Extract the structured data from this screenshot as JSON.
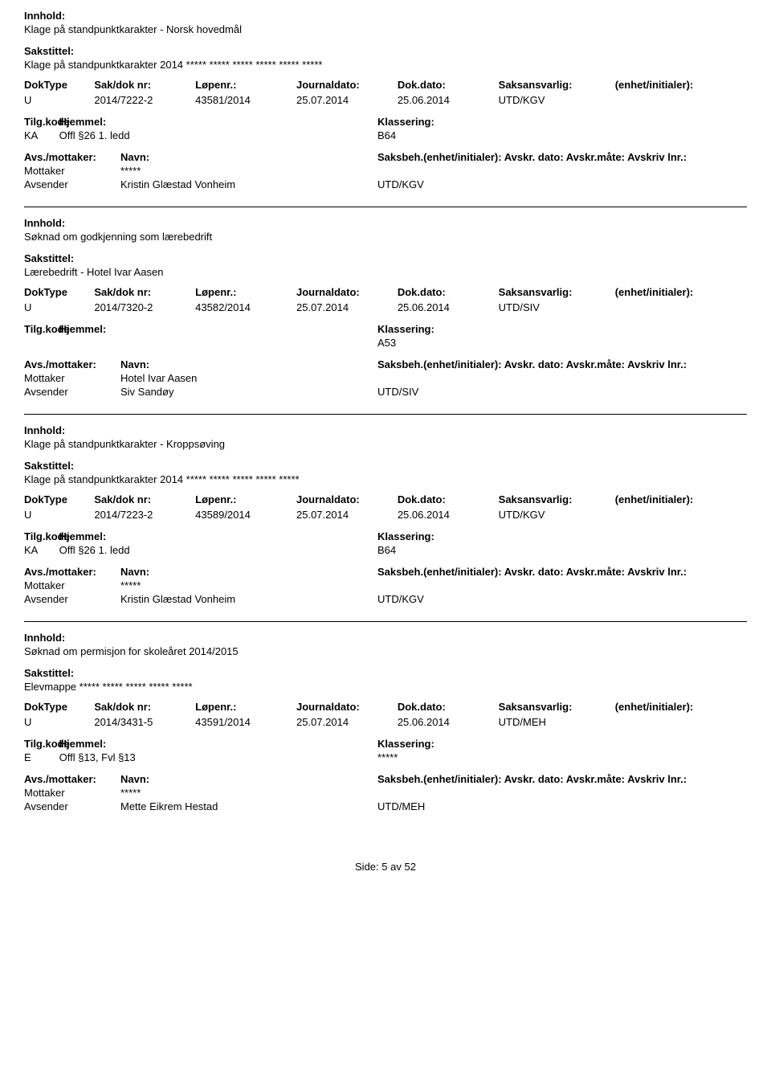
{
  "labels": {
    "innhold": "Innhold:",
    "sakstittel": "Sakstittel:",
    "doktype": "DokType",
    "sakdok": "Sak/dok nr:",
    "lopenr": "Løpenr.:",
    "journaldato": "Journaldato:",
    "dokdato": "Dok.dato:",
    "saksansvarlig": "Saksansvarlig:",
    "enhet": "(enhet/initialer):",
    "tilgkode": "Tilg.kode",
    "hjemmel": "Hjemmel:",
    "klassering": "Klassering:",
    "avsmottaker": "Avs./mottaker:",
    "navn": "Navn:",
    "saksbeh_line": "Saksbeh.(enhet/initialer): Avskr. dato:  Avskr.måte:  Avskriv lnr.:",
    "mottaker": "Mottaker",
    "avsender": "Avsender"
  },
  "records": [
    {
      "innhold": "Klage på standpunktkarakter - Norsk hovedmål",
      "sakstittel": "Klage på standpunktkarakter 2014 ***** ***** ***** ***** ***** *****",
      "doktype": "U",
      "sakdok": "2014/7222-2",
      "lopenr": "43581/2014",
      "journaldato": "25.07.2014",
      "dokdato": "25.06.2014",
      "saksansvarlig": "UTD/KGV",
      "tilgkode": "KA",
      "hjemmel": "Offl §26 1. ledd",
      "klassering": "B64",
      "mottaker_navn": "*****",
      "avsender_navn": "Kristin Glæstad Vonheim",
      "avsender_enhet": "UTD/KGV"
    },
    {
      "innhold": "Søknad om godkjenning som lærebedrift",
      "sakstittel": "Lærebedrift - Hotel Ivar Aasen",
      "doktype": "U",
      "sakdok": "2014/7320-2",
      "lopenr": "43582/2014",
      "journaldato": "25.07.2014",
      "dokdato": "25.06.2014",
      "saksansvarlig": "UTD/SIV",
      "tilgkode": "",
      "hjemmel": "",
      "klassering": "A53",
      "mottaker_navn": "Hotel Ivar Aasen",
      "avsender_navn": "Siv Sandøy",
      "avsender_enhet": "UTD/SIV"
    },
    {
      "innhold": "Klage på standpunktkarakter - Kroppsøving",
      "sakstittel": "Klage på standpunktkarakter 2014 ***** ***** ***** ***** *****",
      "doktype": "U",
      "sakdok": "2014/7223-2",
      "lopenr": "43589/2014",
      "journaldato": "25.07.2014",
      "dokdato": "25.06.2014",
      "saksansvarlig": "UTD/KGV",
      "tilgkode": "KA",
      "hjemmel": "Offl §26 1. ledd",
      "klassering": "B64",
      "mottaker_navn": "*****",
      "avsender_navn": "Kristin Glæstad Vonheim",
      "avsender_enhet": "UTD/KGV"
    },
    {
      "innhold": "Søknad om permisjon for skoleåret 2014/2015",
      "sakstittel": "Elevmappe ***** ***** ***** ***** *****",
      "doktype": "U",
      "sakdok": "2014/3431-5",
      "lopenr": "43591/2014",
      "journaldato": "25.07.2014",
      "dokdato": "25.06.2014",
      "saksansvarlig": "UTD/MEH",
      "tilgkode": "E",
      "hjemmel": "Offl §13, Fvl §13",
      "klassering": "*****",
      "mottaker_navn": "*****",
      "avsender_navn": "Mette Eikrem Hestad",
      "avsender_enhet": "UTD/MEH"
    }
  ],
  "footer": {
    "label": "Side:",
    "page": "5",
    "sep": "av",
    "total": "52"
  }
}
